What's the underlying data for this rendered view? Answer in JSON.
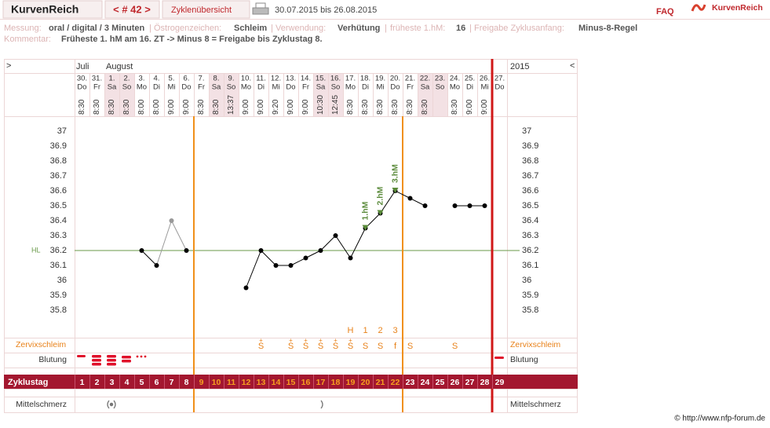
{
  "header": {
    "logo": "KurvenReich",
    "cycle_nav": "< # 42 >",
    "overview": "Zyklenübersicht",
    "date_range": "30.07.2015 bis 26.08.2015",
    "faq": "FAQ",
    "brand": "KurvenReich"
  },
  "info": {
    "separator": "|",
    "fields": [
      {
        "label": "Messung:",
        "value": "oral / digital / 3 Minuten"
      },
      {
        "label": "Östrogenzeichen:",
        "value": "Schleim"
      },
      {
        "label": "Verwendung:",
        "value": "Verhütung"
      },
      {
        "label": "früheste 1.hM:",
        "value": "16"
      },
      {
        "label": "Freigabe Zyklusanfang:",
        "value": "Minus-8-Regel"
      }
    ],
    "comment_label": "Kommentar:",
    "comment": "Früheste 1. hM am 16. ZT -> Minus 8 = Freigabe bis Zyklustag 8."
  },
  "chart_data": {
    "type": "line",
    "nav_left": ">",
    "nav_right": "<",
    "year": "2015",
    "months": [
      "Juli",
      null,
      "August",
      null,
      null,
      null,
      null,
      null,
      null,
      null,
      null,
      null,
      null,
      null,
      null,
      null,
      null,
      null,
      null,
      null,
      null,
      null,
      null,
      null,
      null,
      null,
      null,
      null,
      null
    ],
    "dates": [
      "30.",
      "31.",
      "1.",
      "2.",
      "3.",
      "4.",
      "5.",
      "6.",
      "7.",
      "8.",
      "9.",
      "10.",
      "11.",
      "12.",
      "13.",
      "14.",
      "15.",
      "16.",
      "17.",
      "18.",
      "19.",
      "20.",
      "21.",
      "22.",
      "23.",
      "24.",
      "25.",
      "26.",
      "27."
    ],
    "weekdays": [
      "Do",
      "Fr",
      "Sa",
      "So",
      "Mo",
      "Di",
      "Mi",
      "Do",
      "Fr",
      "Sa",
      "So",
      "Mo",
      "Di",
      "Mi",
      "Do",
      "Fr",
      "Sa",
      "So",
      "Mo",
      "Di",
      "Mi",
      "Do",
      "Fr",
      "Sa",
      "So",
      "Mo",
      "Di",
      "Mi",
      "Do"
    ],
    "times": [
      "8:30",
      "8:30",
      "8:30",
      "8:30",
      "8:00",
      "8:00",
      "9:00",
      "9:00",
      "8:30",
      "8:30",
      "13:37",
      "9:00",
      "9:00",
      "9:20",
      "9:00",
      "9:00",
      "10:30",
      "12:45",
      "8:30",
      "8:30",
      "8:30",
      "8:30",
      "8:30",
      "8:30",
      null,
      "8:30",
      "9:00",
      "9:00",
      null
    ],
    "categories": [
      "1",
      "2",
      "3",
      "4",
      "5",
      "6",
      "7",
      "8",
      "9",
      "10",
      "11",
      "12",
      "13",
      "14",
      "15",
      "16",
      "17",
      "18",
      "19",
      "20",
      "21",
      "22",
      "23",
      "24",
      "25",
      "26",
      "27",
      "28",
      "29"
    ],
    "series": [
      {
        "color": "#000000",
        "values": [
          null,
          null,
          null,
          null,
          36.2,
          36.1,
          null,
          36.2,
          null,
          null,
          null,
          35.95,
          36.2,
          36.1,
          36.1,
          36.15,
          36.2,
          36.3,
          36.15,
          36.35,
          36.45,
          36.6,
          36.55,
          36.5,
          null,
          36.5,
          36.5,
          36.5,
          null
        ]
      },
      {
        "color": "#999999",
        "values": [
          null,
          null,
          null,
          null,
          null,
          null,
          36.4,
          null,
          null,
          null,
          null,
          null,
          null,
          null,
          null,
          null,
          null,
          null,
          null,
          null,
          null,
          null,
          null,
          null,
          null,
          null,
          null,
          null,
          null
        ]
      }
    ],
    "ylim": [
      35.6,
      37.1
    ],
    "yticks": [
      35.8,
      35.9,
      36,
      36.1,
      36.2,
      36.3,
      36.4,
      36.5,
      36.6,
      36.7,
      36.8,
      36.9,
      37
    ],
    "hl": {
      "label": "HL",
      "value": 36.2,
      "color": "#6a9a4a"
    },
    "annotations": [
      {
        "label": "1.hM",
        "category": "20"
      },
      {
        "label": "2.hM",
        "category": "21"
      },
      {
        "label": "3.hM",
        "category": "22"
      }
    ],
    "annotation_color": "#5a8a3a",
    "peak": [
      null,
      null,
      null,
      null,
      null,
      null,
      null,
      null,
      null,
      null,
      null,
      null,
      null,
      null,
      null,
      null,
      null,
      null,
      "H",
      "1",
      "2",
      "3",
      null,
      null,
      null,
      null,
      null,
      null,
      null
    ],
    "cervix_label": "Zervixschleim",
    "cervix_plus": [
      null,
      null,
      null,
      null,
      null,
      null,
      null,
      null,
      null,
      null,
      null,
      null,
      "+",
      null,
      "+",
      "+",
      "+",
      "+",
      "+",
      null,
      null,
      null,
      null,
      null,
      null,
      null,
      null,
      null,
      null
    ],
    "cervix": [
      null,
      null,
      null,
      null,
      null,
      null,
      null,
      null,
      null,
      null,
      null,
      null,
      "S",
      null,
      "S",
      "S",
      "S",
      "S",
      "S",
      "S",
      "S",
      "f",
      "S",
      null,
      null,
      "S",
      null,
      null,
      null
    ],
    "bleeding_label": "Blutung",
    "cycle_day_label": "Zyklustag",
    "pain_label": "Mittelschmerz"
  },
  "footer": "© http://www.nfp-forum.de"
}
